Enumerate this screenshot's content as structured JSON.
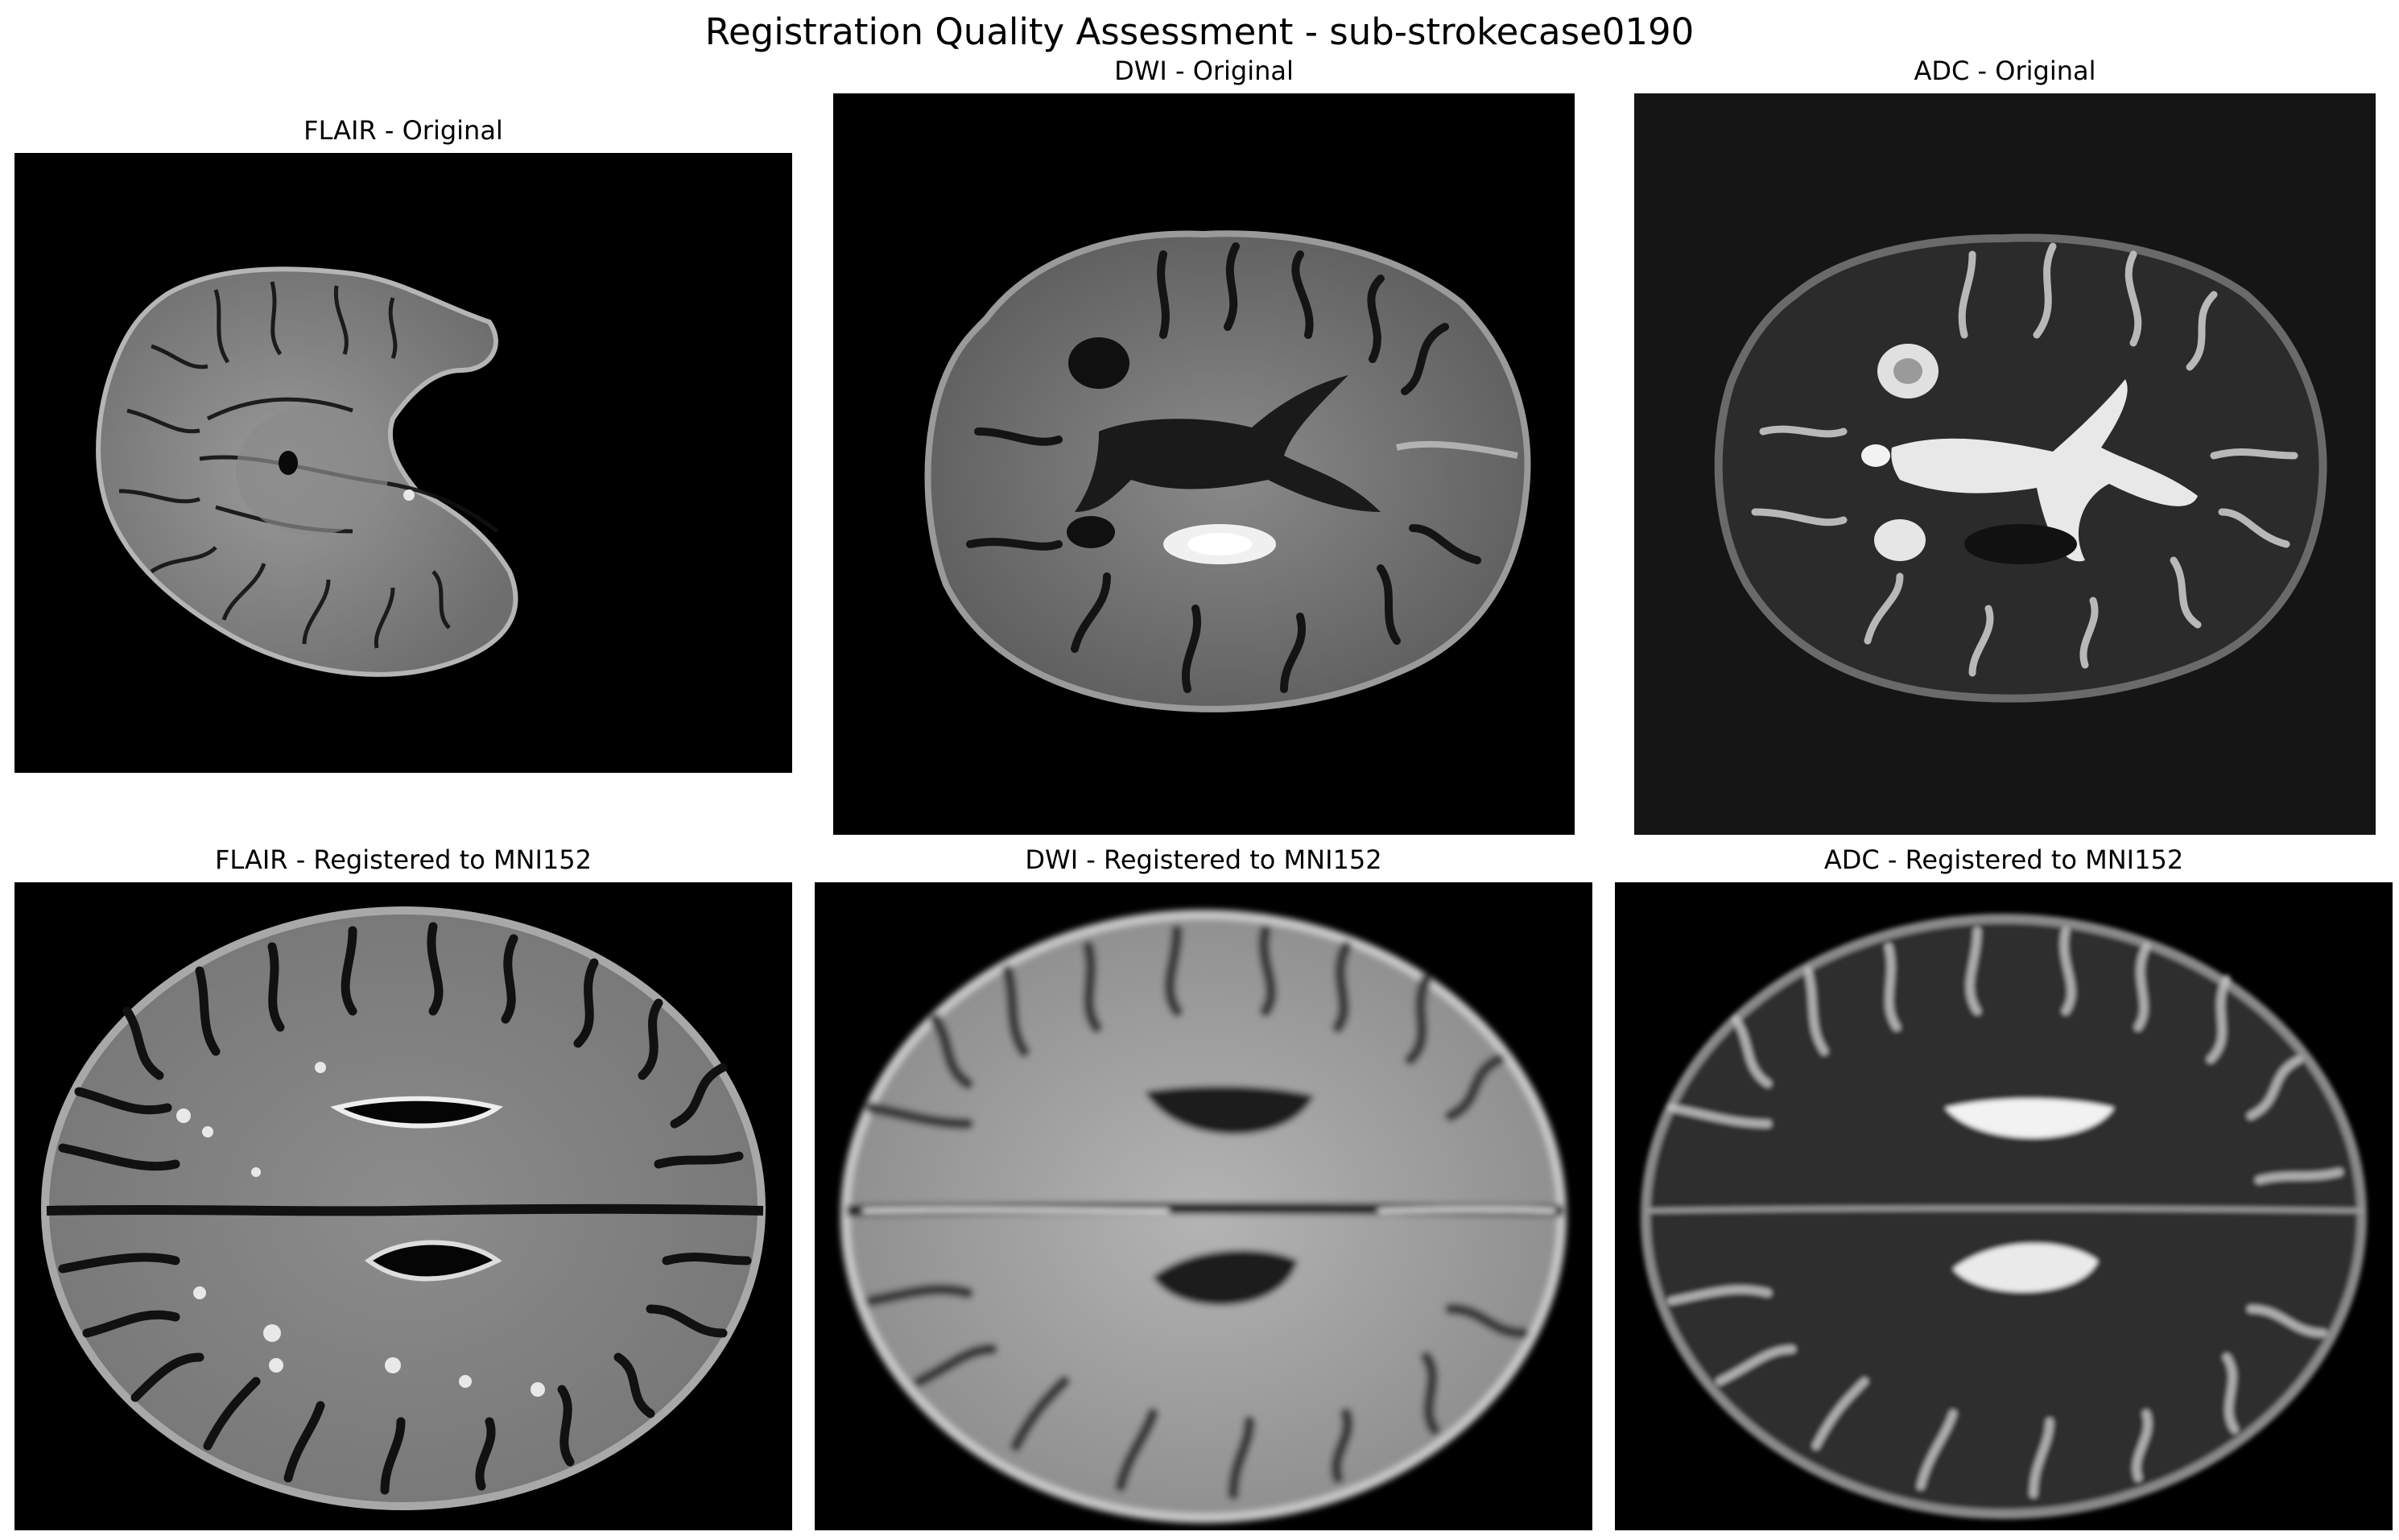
{
  "figure": {
    "title": "Registration Quality Assessment - sub-strokecase0190"
  },
  "panels": [
    {
      "id": "flair-original",
      "title": "FLAIR - Original",
      "background": "#000000"
    },
    {
      "id": "dwi-original",
      "title": "DWI - Original",
      "background": "#000000"
    },
    {
      "id": "adc-original",
      "title": "ADC - Original",
      "background": "#151515"
    },
    {
      "id": "flair-registered",
      "title": "FLAIR - Registered to MNI152",
      "background": "#000000"
    },
    {
      "id": "dwi-registered",
      "title": "DWI - Registered to MNI152",
      "background": "#000000"
    },
    {
      "id": "adc-registered",
      "title": "ADC - Registered to MNI152",
      "background": "#000000"
    }
  ]
}
